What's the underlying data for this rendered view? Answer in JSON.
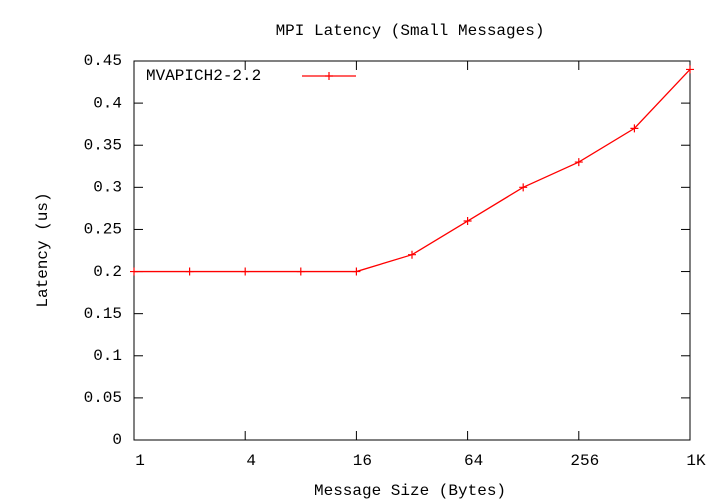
{
  "chart_data": {
    "type": "line",
    "title": "MPI Latency (Small Messages)",
    "x_label": "Message Size (Bytes)",
    "y_label": "Latency (us)",
    "x": [
      1,
      2,
      4,
      8,
      16,
      32,
      64,
      128,
      256,
      512,
      1024
    ],
    "series": [
      {
        "name": "MVAPICH2-2.2",
        "color": "#ff0000",
        "values": [
          0.2,
          0.2,
          0.2,
          0.2,
          0.2,
          0.22,
          0.26,
          0.3,
          0.33,
          0.37,
          0.44
        ]
      }
    ],
    "xscale": "log2",
    "xlim": [
      1,
      1024
    ],
    "xticks": [
      1,
      4,
      16,
      64,
      256,
      {
        "value": 1024,
        "label": "1K"
      }
    ],
    "ylim": [
      0,
      0.45
    ],
    "yticks": [
      0,
      0.05,
      0.1,
      0.15,
      0.2,
      0.25,
      0.3,
      0.35,
      0.4,
      0.45
    ],
    "grid": false,
    "legend": "top-left"
  }
}
